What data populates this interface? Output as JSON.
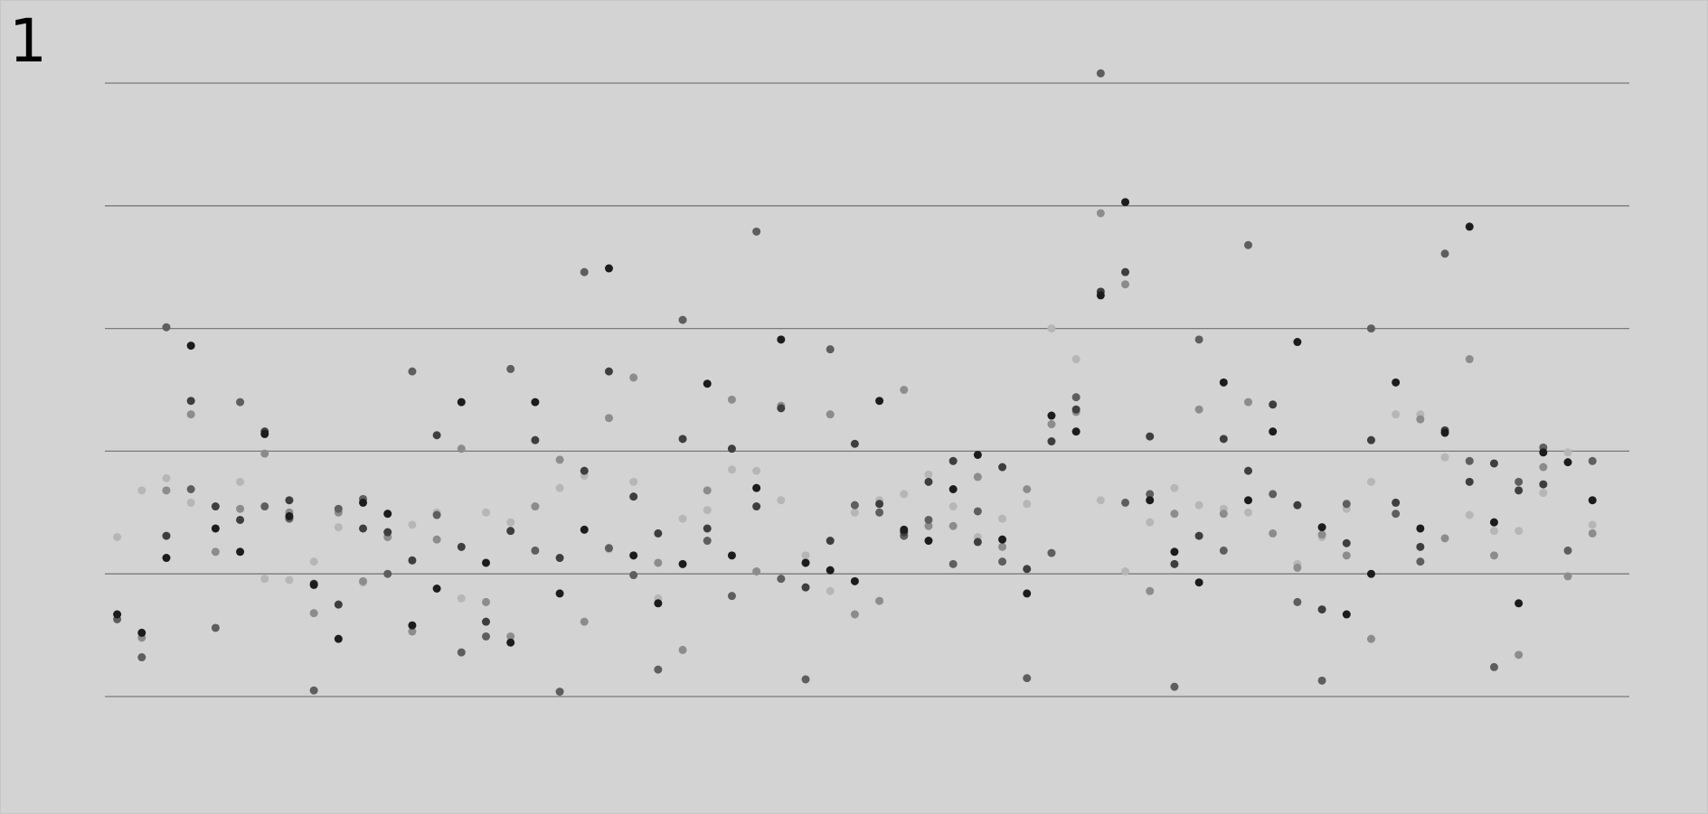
{
  "panel_label": "1",
  "chart_data": {
    "type": "scatter",
    "title": "",
    "xlabel": "",
    "ylabel": "",
    "xlim": [
      0.5,
      62.5
    ],
    "ylim": [
      0,
      5
    ],
    "gridlines_y": [
      0,
      1,
      2,
      3,
      4,
      5
    ],
    "grid": "horizontal",
    "legend": "none",
    "series": [
      {
        "color": "#b6b6b6",
        "points": [
          [
            1,
            1.3
          ],
          [
            2,
            1.68
          ],
          [
            3,
            1.78
          ],
          [
            4,
            1.58
          ],
          [
            6,
            1.75
          ],
          [
            7,
            0.96
          ],
          [
            8,
            0.95
          ],
          [
            9,
            1.1
          ],
          [
            10,
            1.38
          ],
          [
            11,
            0.93
          ],
          [
            12,
            1.3
          ],
          [
            13,
            1.4
          ],
          [
            14,
            1.5
          ],
          [
            15,
            0.8
          ],
          [
            16,
            1.5
          ],
          [
            17,
            1.42
          ],
          [
            18,
            1.55
          ],
          [
            19,
            1.7
          ],
          [
            20,
            1.8
          ],
          [
            21,
            1.2
          ],
          [
            22,
            1.75
          ],
          [
            23,
            0.8
          ],
          [
            24,
            1.45
          ],
          [
            25,
            1.52
          ],
          [
            26,
            1.85
          ],
          [
            27,
            1.84
          ],
          [
            28,
            1.6
          ],
          [
            29,
            1.15
          ],
          [
            30,
            0.86
          ],
          [
            31,
            1.5
          ],
          [
            32,
            1.6
          ],
          [
            33,
            1.65
          ],
          [
            34,
            1.81
          ],
          [
            35,
            1.55
          ],
          [
            36,
            1.3
          ],
          [
            37,
            1.45
          ],
          [
            38,
            1.57
          ],
          [
            39,
            3.0
          ],
          [
            40,
            2.75
          ],
          [
            41,
            1.6
          ],
          [
            42,
            1.02
          ],
          [
            43,
            1.42
          ],
          [
            44,
            1.7
          ],
          [
            45,
            1.56
          ],
          [
            46,
            1.53
          ],
          [
            47,
            1.5
          ],
          [
            49,
            1.08
          ],
          [
            50,
            1.3
          ],
          [
            51,
            1.53
          ],
          [
            52,
            1.75
          ],
          [
            53,
            2.3
          ],
          [
            54,
            2.3
          ],
          [
            55,
            1.95
          ],
          [
            56,
            1.48
          ],
          [
            57,
            1.35
          ],
          [
            58,
            1.35
          ],
          [
            59,
            1.66
          ],
          [
            60,
            1.99
          ],
          [
            61,
            1.4
          ]
        ]
      },
      {
        "color": "#8c8c8c",
        "points": [
          [
            2,
            0.48
          ],
          [
            3,
            1.68
          ],
          [
            4,
            2.3
          ],
          [
            5,
            1.18
          ],
          [
            6,
            1.53
          ],
          [
            7,
            1.98
          ],
          [
            8,
            1.5
          ],
          [
            9,
            0.68
          ],
          [
            10,
            1.5
          ],
          [
            11,
            0.94
          ],
          [
            12,
            1.3
          ],
          [
            13,
            0.53
          ],
          [
            14,
            1.28
          ],
          [
            15,
            2.02
          ],
          [
            16,
            0.77
          ],
          [
            17,
            0.49
          ],
          [
            18,
            1.55
          ],
          [
            19,
            1.93
          ],
          [
            20,
            0.61
          ],
          [
            21,
            2.27
          ],
          [
            22,
            2.6
          ],
          [
            23,
            1.09
          ],
          [
            24,
            0.38
          ],
          [
            25,
            1.68
          ],
          [
            26,
            2.42
          ],
          [
            27,
            1.02
          ],
          [
            28,
            2.37
          ],
          [
            29,
            1.09
          ],
          [
            30,
            2.3
          ],
          [
            31,
            0.67
          ],
          [
            32,
            0.78
          ],
          [
            33,
            2.5
          ],
          [
            34,
            1.39
          ],
          [
            35,
            1.39
          ],
          [
            36,
            1.79
          ],
          [
            37,
            1.22
          ],
          [
            38,
            1.69
          ],
          [
            39,
            2.22
          ],
          [
            40,
            2.32
          ],
          [
            41,
            3.94
          ],
          [
            42,
            3.36
          ],
          [
            43,
            0.86
          ],
          [
            44,
            1.49
          ],
          [
            45,
            2.34
          ],
          [
            46,
            1.49
          ],
          [
            47,
            2.4
          ],
          [
            48,
            1.33
          ],
          [
            49,
            1.05
          ],
          [
            50,
            1.32
          ],
          [
            51,
            1.15
          ],
          [
            52,
            0.47
          ],
          [
            53,
            1.58
          ],
          [
            54,
            2.26
          ],
          [
            55,
            1.29
          ],
          [
            56,
            2.75
          ],
          [
            57,
            1.15
          ],
          [
            58,
            0.34
          ],
          [
            59,
            1.87
          ],
          [
            60,
            0.98
          ],
          [
            61,
            1.33
          ]
        ]
      },
      {
        "color": "#5e5e5e",
        "points": [
          [
            1,
            0.63
          ],
          [
            2,
            0.32
          ],
          [
            3,
            3.01
          ],
          [
            4,
            1.69
          ],
          [
            5,
            0.56
          ],
          [
            6,
            2.4
          ],
          [
            7,
            1.55
          ],
          [
            8,
            1.45
          ],
          [
            9,
            0.05
          ],
          [
            10,
            1.53
          ],
          [
            11,
            1.61
          ],
          [
            12,
            1.0
          ],
          [
            13,
            2.65
          ],
          [
            14,
            1.48
          ],
          [
            15,
            0.36
          ],
          [
            16,
            0.49
          ],
          [
            17,
            2.67
          ],
          [
            18,
            1.19
          ],
          [
            19,
            0.04
          ],
          [
            20,
            3.46
          ],
          [
            21,
            1.21
          ],
          [
            22,
            0.99
          ],
          [
            23,
            0.22
          ],
          [
            24,
            3.07
          ],
          [
            25,
            1.27
          ],
          [
            26,
            0.82
          ],
          [
            27,
            3.79
          ],
          [
            28,
            0.96
          ],
          [
            29,
            0.14
          ],
          [
            30,
            2.83
          ],
          [
            31,
            1.56
          ],
          [
            32,
            1.5
          ],
          [
            33,
            1.31
          ],
          [
            34,
            1.44
          ],
          [
            35,
            1.08
          ],
          [
            36,
            1.51
          ],
          [
            37,
            1.1
          ],
          [
            38,
            0.15
          ],
          [
            39,
            1.17
          ],
          [
            40,
            2.44
          ],
          [
            41,
            5.08
          ],
          [
            42,
            1.58
          ],
          [
            43,
            1.65
          ],
          [
            44,
            0.08
          ],
          [
            45,
            2.91
          ],
          [
            46,
            1.19
          ],
          [
            47,
            3.68
          ],
          [
            48,
            1.65
          ],
          [
            49,
            0.77
          ],
          [
            50,
            0.13
          ],
          [
            51,
            1.57
          ],
          [
            52,
            3.0
          ],
          [
            53,
            1.49
          ],
          [
            54,
            1.1
          ],
          [
            55,
            3.61
          ],
          [
            56,
            1.92
          ],
          [
            57,
            0.24
          ],
          [
            58,
            1.75
          ],
          [
            59,
            2.03
          ],
          [
            60,
            1.19
          ],
          [
            61,
            1.92
          ]
        ]
      },
      {
        "color": "#3e3e3e",
        "points": [
          [
            3,
            1.31
          ],
          [
            4,
            2.41
          ],
          [
            5,
            1.55
          ],
          [
            6,
            1.44
          ],
          [
            7,
            2.16
          ],
          [
            8,
            1.6
          ],
          [
            9,
            0.92
          ],
          [
            10,
            0.75
          ],
          [
            11,
            1.37
          ],
          [
            12,
            1.34
          ],
          [
            13,
            1.11
          ],
          [
            14,
            2.13
          ],
          [
            15,
            1.22
          ],
          [
            16,
            0.61
          ],
          [
            17,
            1.35
          ],
          [
            18,
            2.09
          ],
          [
            19,
            1.13
          ],
          [
            20,
            1.84
          ],
          [
            21,
            2.65
          ],
          [
            22,
            1.63
          ],
          [
            23,
            1.33
          ],
          [
            24,
            2.1
          ],
          [
            25,
            1.37
          ],
          [
            26,
            2.02
          ],
          [
            27,
            1.55
          ],
          [
            28,
            2.35
          ],
          [
            29,
            0.89
          ],
          [
            30,
            1.27
          ],
          [
            31,
            2.06
          ],
          [
            32,
            1.57
          ],
          [
            33,
            1.34
          ],
          [
            34,
            1.75
          ],
          [
            35,
            1.92
          ],
          [
            36,
            1.26
          ],
          [
            37,
            1.87
          ],
          [
            38,
            1.04
          ],
          [
            39,
            2.08
          ],
          [
            40,
            2.34
          ],
          [
            41,
            3.3
          ],
          [
            42,
            3.46
          ],
          [
            43,
            2.12
          ],
          [
            44,
            1.08
          ],
          [
            45,
            1.31
          ],
          [
            46,
            2.1
          ],
          [
            47,
            1.84
          ],
          [
            48,
            2.38
          ],
          [
            49,
            1.56
          ],
          [
            50,
            0.71
          ],
          [
            51,
            1.25
          ],
          [
            52,
            2.09
          ],
          [
            53,
            1.58
          ],
          [
            54,
            1.22
          ],
          [
            55,
            2.17
          ],
          [
            56,
            1.75
          ],
          [
            57,
            1.9
          ],
          [
            58,
            1.68
          ],
          [
            59,
            1.73
          ]
        ]
      },
      {
        "color": "#1c1c1c",
        "points": [
          [
            1,
            0.67
          ],
          [
            2,
            0.52
          ],
          [
            3,
            1.13
          ],
          [
            4,
            2.86
          ],
          [
            5,
            1.37
          ],
          [
            6,
            1.18
          ],
          [
            7,
            2.14
          ],
          [
            8,
            1.47
          ],
          [
            9,
            0.91
          ],
          [
            10,
            0.47
          ],
          [
            11,
            1.58
          ],
          [
            12,
            1.49
          ],
          [
            13,
            0.58
          ],
          [
            14,
            0.88
          ],
          [
            15,
            2.4
          ],
          [
            16,
            1.09
          ],
          [
            17,
            0.44
          ],
          [
            18,
            2.4
          ],
          [
            19,
            0.84
          ],
          [
            20,
            1.36
          ],
          [
            21,
            3.49
          ],
          [
            22,
            1.15
          ],
          [
            23,
            0.76
          ],
          [
            24,
            1.08
          ],
          [
            25,
            2.55
          ],
          [
            26,
            1.15
          ],
          [
            27,
            1.7
          ],
          [
            28,
            2.91
          ],
          [
            29,
            1.09
          ],
          [
            30,
            1.03
          ],
          [
            31,
            0.94
          ],
          [
            32,
            2.41
          ],
          [
            33,
            1.36
          ],
          [
            34,
            1.27
          ],
          [
            35,
            1.69
          ],
          [
            36,
            1.97
          ],
          [
            37,
            1.28
          ],
          [
            38,
            0.84
          ],
          [
            39,
            2.29
          ],
          [
            40,
            2.16
          ],
          [
            41,
            3.27
          ],
          [
            42,
            4.03
          ],
          [
            43,
            1.6
          ],
          [
            44,
            1.18
          ],
          [
            45,
            0.93
          ],
          [
            46,
            2.56
          ],
          [
            47,
            1.6
          ],
          [
            48,
            2.16
          ],
          [
            49,
            2.89
          ],
          [
            50,
            1.38
          ],
          [
            51,
            0.67
          ],
          [
            52,
            1.0
          ],
          [
            53,
            2.56
          ],
          [
            54,
            1.37
          ],
          [
            55,
            2.15
          ],
          [
            56,
            3.83
          ],
          [
            57,
            1.42
          ],
          [
            58,
            0.76
          ],
          [
            59,
            1.99
          ],
          [
            60,
            1.91
          ],
          [
            61,
            1.6
          ]
        ]
      }
    ]
  }
}
